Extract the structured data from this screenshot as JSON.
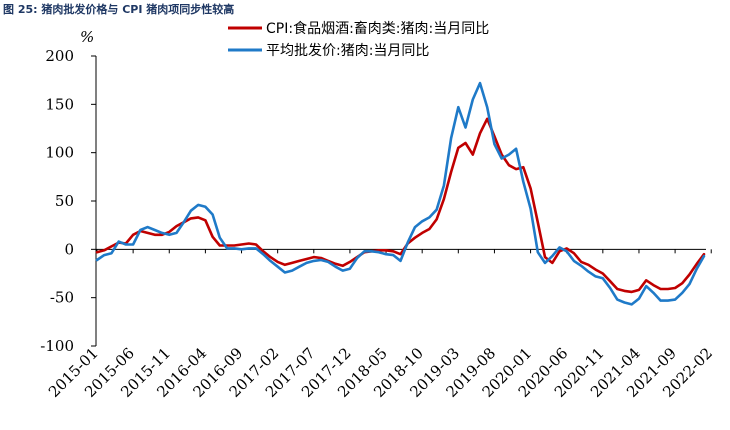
{
  "caption": "图 25: 猪肉批发价格与 CPI 猪肉项同步性较高",
  "chart_data": {
    "type": "line",
    "yunit": "%",
    "ylim": [
      -100,
      200
    ],
    "yticks": [
      200,
      150,
      100,
      50,
      0,
      -50,
      -100
    ],
    "ytick_labels": [
      "200",
      "150",
      "100",
      "50",
      "0",
      "-50",
      "-100"
    ],
    "xtick_labels": [
      "2015-01",
      "2015-06",
      "2015-11",
      "2016-04",
      "2016-09",
      "2017-02",
      "2017-07",
      "2017-12",
      "2018-05",
      "2018-10",
      "2019-03",
      "2019-08",
      "2020-01",
      "2020-06",
      "2020-11",
      "2021-04",
      "2021-09",
      "2022-02"
    ],
    "legend_position": "top",
    "grid": false,
    "series": [
      {
        "name": "CPI:食品烟酒:畜肉类:猪肉:当月同比",
        "color": "#c00000",
        "values": [
          -3,
          -1,
          3,
          7,
          6,
          15,
          19,
          17,
          15,
          15,
          18,
          24,
          28,
          32,
          33,
          30,
          13,
          4,
          4,
          4,
          5,
          6,
          5,
          -2,
          -8,
          -13,
          -16,
          -14,
          -12,
          -10,
          -8,
          -9,
          -12,
          -15,
          -17,
          -13,
          -8,
          -3,
          -2,
          -1,
          -1,
          -2,
          -5,
          6,
          12,
          17,
          21,
          31,
          52,
          80,
          105,
          110,
          98,
          120,
          135,
          117,
          98,
          87,
          83,
          85,
          63,
          28,
          -8,
          -14,
          -2,
          1,
          -4,
          -13,
          -16,
          -21,
          -25,
          -33,
          -41,
          -43,
          -44,
          -42,
          -32,
          -37,
          -41,
          -41,
          -40,
          -35,
          -26,
          -15,
          -5
        ]
      },
      {
        "name": "平均批发价:猪肉:当月同比",
        "color": "#1f7ac8",
        "values": [
          -11,
          -6,
          -4,
          8,
          5,
          5,
          20,
          23,
          20,
          17,
          15,
          17,
          28,
          40,
          46,
          44,
          36,
          12,
          1,
          1,
          0,
          1,
          1,
          -5,
          -12,
          -18,
          -24,
          -22,
          -18,
          -14,
          -12,
          -11,
          -13,
          -18,
          -22,
          -20,
          -9,
          -2,
          -2,
          -3,
          -5,
          -6,
          -12,
          7,
          23,
          29,
          33,
          41,
          66,
          115,
          147,
          126,
          155,
          172,
          147,
          109,
          94,
          98,
          104,
          70,
          42,
          -3,
          -14,
          -7,
          2,
          -2,
          -12,
          -17,
          -23,
          -28,
          -30,
          -40,
          -52,
          -55,
          -57,
          -51,
          -38,
          -45,
          -53,
          -53,
          -52,
          -45,
          -36,
          -20,
          -7
        ]
      }
    ]
  }
}
